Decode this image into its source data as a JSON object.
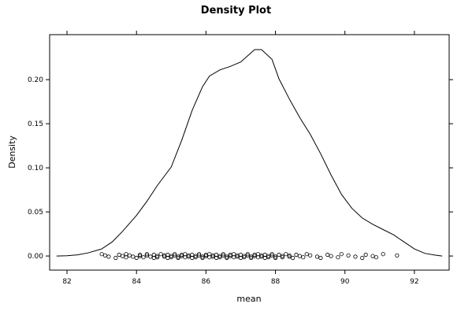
{
  "chart_data": {
    "type": "line",
    "title": "Density Plot",
    "xlabel": "mean",
    "ylabel": "Density",
    "xlim": [
      81.5,
      93.0
    ],
    "ylim": [
      -0.016,
      0.251
    ],
    "x_ticks": [
      82,
      84,
      86,
      88,
      90,
      92
    ],
    "x_tick_labels": [
      "82",
      "84",
      "86",
      "88",
      "90",
      "92"
    ],
    "y_ticks": [
      0.0,
      0.05,
      0.1,
      0.15,
      0.2
    ],
    "y_tick_labels": [
      "0.00",
      "0.05",
      "0.10",
      "0.15",
      "0.20"
    ],
    "grid": false,
    "series": [
      {
        "values_xy": [
          [
            81.7,
            0.0
          ],
          [
            82.0,
            0.0003
          ],
          [
            82.3,
            0.0013
          ],
          [
            82.6,
            0.0035
          ],
          [
            83.0,
            0.008
          ],
          [
            83.3,
            0.016
          ],
          [
            83.6,
            0.028
          ],
          [
            84.0,
            0.046
          ],
          [
            84.3,
            0.062
          ],
          [
            84.6,
            0.08
          ],
          [
            85.0,
            0.101
          ],
          [
            85.3,
            0.131
          ],
          [
            85.6,
            0.165
          ],
          [
            85.9,
            0.192
          ],
          [
            86.1,
            0.204
          ],
          [
            86.4,
            0.211
          ],
          [
            86.7,
            0.215
          ],
          [
            87.0,
            0.22
          ],
          [
            87.2,
            0.227
          ],
          [
            87.4,
            0.234
          ],
          [
            87.6,
            0.234
          ],
          [
            87.9,
            0.223
          ],
          [
            88.1,
            0.201
          ],
          [
            88.4,
            0.178
          ],
          [
            88.7,
            0.157
          ],
          [
            89.0,
            0.138
          ],
          [
            89.3,
            0.116
          ],
          [
            89.6,
            0.092
          ],
          [
            89.9,
            0.07
          ],
          [
            90.2,
            0.054
          ],
          [
            90.5,
            0.043
          ],
          [
            90.8,
            0.036
          ],
          [
            91.1,
            0.03
          ],
          [
            91.4,
            0.024
          ],
          [
            91.7,
            0.016
          ],
          [
            92.0,
            0.008
          ],
          [
            92.3,
            0.003
          ],
          [
            92.6,
            0.001
          ],
          [
            92.8,
            0.0
          ]
        ]
      }
    ],
    "rug": {
      "marker": "open-circle",
      "x": [
        83.0,
        83.1,
        83.2,
        83.4,
        83.5,
        83.6,
        83.7,
        83.7,
        83.8,
        83.9,
        84.0,
        84.1,
        84.1,
        84.2,
        84.3,
        84.3,
        84.4,
        84.5,
        84.5,
        84.6,
        84.6,
        84.7,
        84.8,
        84.8,
        84.9,
        84.9,
        85.0,
        85.0,
        85.1,
        85.1,
        85.2,
        85.2,
        85.3,
        85.3,
        85.4,
        85.4,
        85.5,
        85.5,
        85.6,
        85.6,
        85.7,
        85.7,
        85.8,
        85.8,
        85.9,
        85.9,
        86.0,
        86.0,
        86.1,
        86.1,
        86.2,
        86.2,
        86.3,
        86.3,
        86.4,
        86.4,
        86.5,
        86.5,
        86.6,
        86.6,
        86.7,
        86.7,
        86.8,
        86.8,
        86.9,
        86.9,
        87.0,
        87.0,
        87.1,
        87.1,
        87.2,
        87.2,
        87.3,
        87.3,
        87.4,
        87.4,
        87.5,
        87.5,
        87.6,
        87.6,
        87.7,
        87.7,
        87.8,
        87.8,
        87.9,
        87.9,
        88.0,
        88.0,
        88.1,
        88.2,
        88.2,
        88.3,
        88.4,
        88.4,
        88.5,
        88.6,
        88.7,
        88.8,
        88.9,
        89.0,
        89.2,
        89.3,
        89.5,
        89.6,
        89.8,
        89.9,
        90.1,
        90.3,
        90.5,
        90.6,
        90.8,
        90.9,
        91.1,
        91.5
      ]
    }
  }
}
